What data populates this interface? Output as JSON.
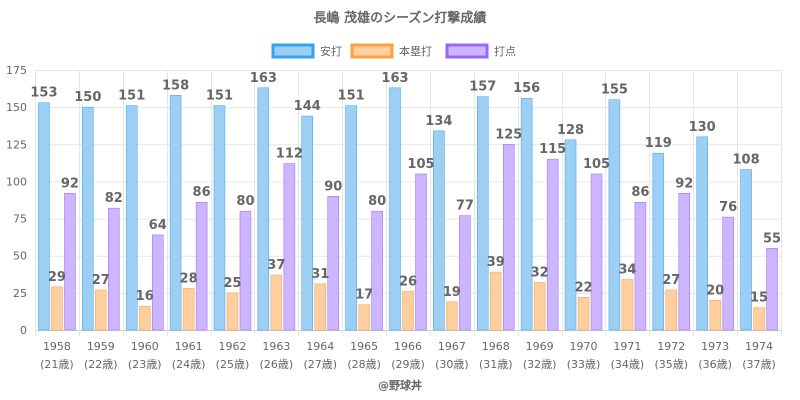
{
  "chart_data": {
    "type": "bar",
    "title": "長嶋 茂雄のシーズン打撃成績",
    "credit": "@野球丼",
    "ylim": [
      0,
      175
    ],
    "yticks": [
      0,
      25,
      50,
      75,
      100,
      125,
      150,
      175
    ],
    "categories": [
      "1958",
      "1959",
      "1960",
      "1961",
      "1962",
      "1963",
      "1964",
      "1965",
      "1966",
      "1967",
      "1968",
      "1969",
      "1970",
      "1971",
      "1972",
      "1973",
      "1974"
    ],
    "sublabels": [
      "(21歳)",
      "(22歳)",
      "(23歳)",
      "(24歳)",
      "(25歳)",
      "(26歳)",
      "(27歳)",
      "(28歳)",
      "(29歳)",
      "(30歳)",
      "(31歳)",
      "(32歳)",
      "(33歳)",
      "(34歳)",
      "(35歳)",
      "(36歳)",
      "(37歳)"
    ],
    "series": [
      {
        "name": "安打",
        "fill": "#9ccff3",
        "stroke": "#36a2eb",
        "values": [
          153,
          150,
          151,
          158,
          151,
          163,
          144,
          151,
          163,
          134,
          157,
          156,
          128,
          155,
          119,
          130,
          108
        ]
      },
      {
        "name": "本塁打",
        "fill": "#ffcf9f",
        "stroke": "#ff9f40",
        "values": [
          29,
          27,
          16,
          28,
          25,
          37,
          31,
          17,
          26,
          19,
          39,
          32,
          22,
          34,
          27,
          20,
          15
        ]
      },
      {
        "name": "打点",
        "fill": "#cdb5ff",
        "stroke": "#9966ff",
        "values": [
          92,
          82,
          64,
          86,
          80,
          112,
          90,
          80,
          105,
          77,
          125,
          115,
          105,
          86,
          92,
          76,
          55
        ]
      }
    ]
  }
}
